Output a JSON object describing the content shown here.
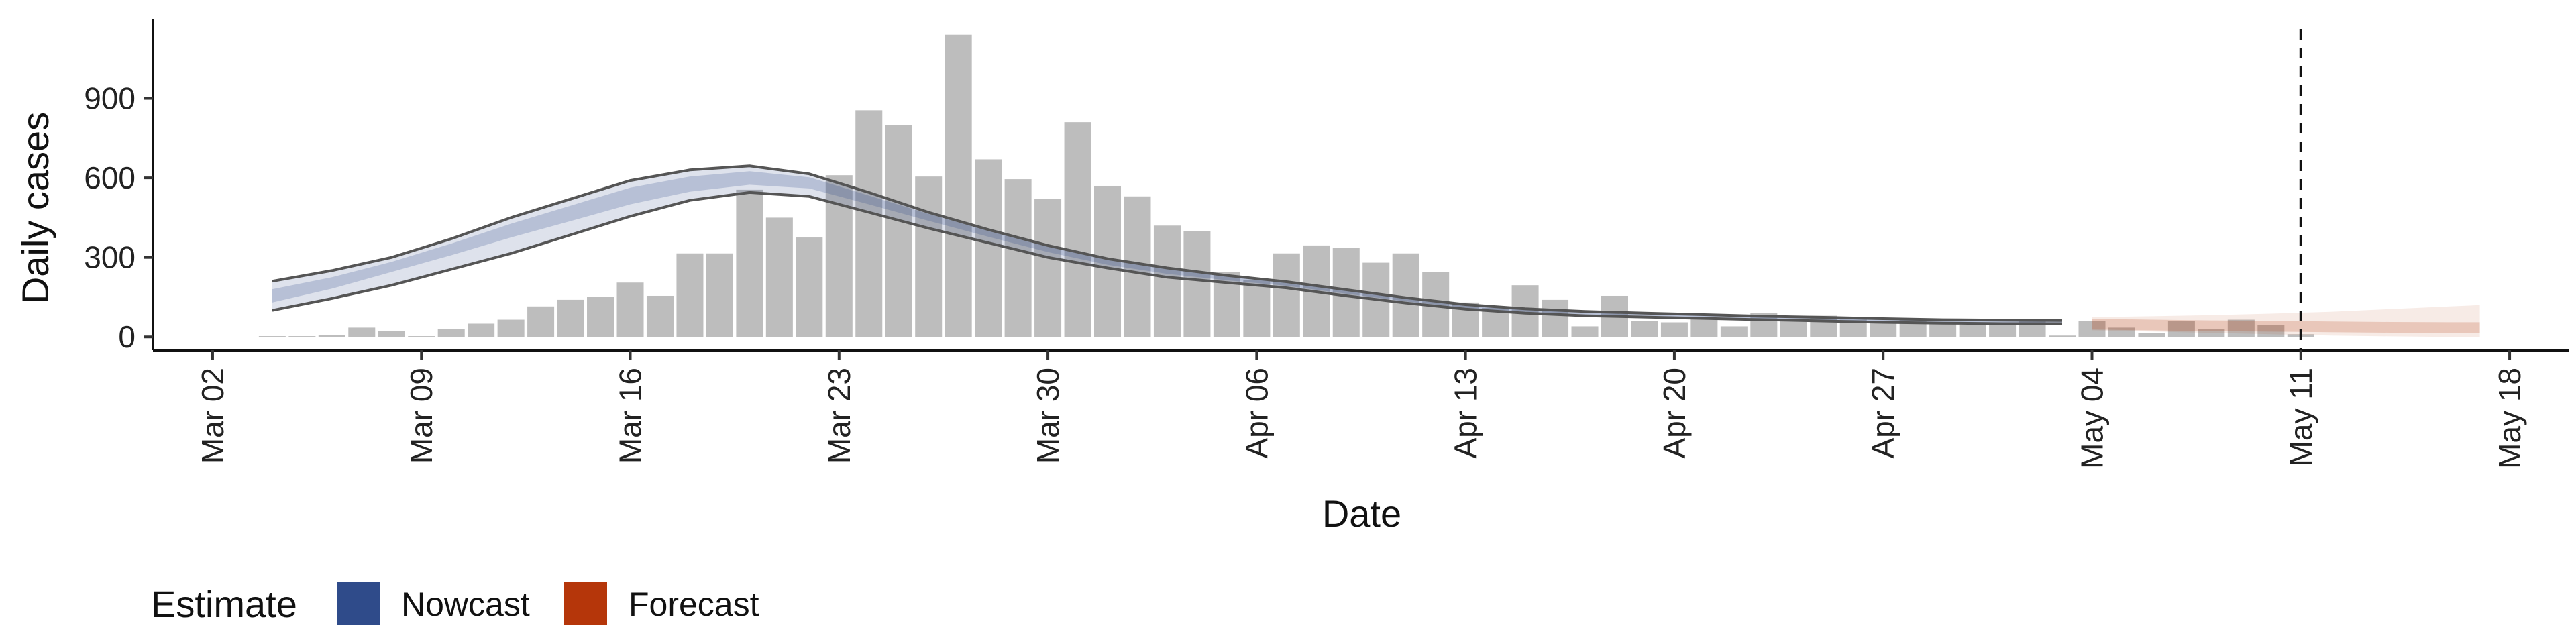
{
  "chart_data": {
    "type": "bar",
    "title": "",
    "xlabel": "Date",
    "ylabel": "Daily cases",
    "ylim": [
      -50,
      1200
    ],
    "xlim": [
      "2020-02-29",
      "2020-05-20"
    ],
    "yticks": [
      0,
      300,
      600,
      900
    ],
    "ytick_labels": [
      "0",
      "300",
      "600",
      "900"
    ],
    "xticks": [
      "2020-03-02",
      "2020-03-09",
      "2020-03-16",
      "2020-03-23",
      "2020-03-30",
      "2020-04-06",
      "2020-04-13",
      "2020-04-20",
      "2020-04-27",
      "2020-05-04",
      "2020-05-11",
      "2020-05-18"
    ],
    "xtick_labels": [
      "Mar 02",
      "Mar 09",
      "Mar 16",
      "Mar 23",
      "Mar 30",
      "Apr 06",
      "Apr 13",
      "Apr 20",
      "Apr 27",
      "May 04",
      "May 11",
      "May 18"
    ],
    "grid": false,
    "colors": {
      "bars": "#bdbdbd",
      "nowcast": "#2f4b8a",
      "forecast": "#b5360a",
      "interval_line": "#555555",
      "vline": "#111111"
    },
    "reported_cases": {
      "start_date": "2020-03-04",
      "values": [
        3,
        3,
        8,
        35,
        22,
        3,
        30,
        50,
        65,
        115,
        140,
        150,
        205,
        155,
        315,
        315,
        555,
        450,
        375,
        610,
        855,
        800,
        605,
        1140,
        670,
        595,
        520,
        810,
        570,
        530,
        420,
        400,
        245,
        215,
        315,
        345,
        335,
        280,
        315,
        245,
        130,
        110,
        195,
        140,
        40,
        155,
        60,
        55,
        70,
        40,
        90,
        60,
        80,
        65,
        55,
        70,
        50,
        45,
        50,
        60,
        5,
        60,
        35,
        15,
        60,
        30,
        65,
        45,
        10
      ]
    },
    "nowcast": {
      "x": [
        "2020-03-04",
        "2020-03-06",
        "2020-03-08",
        "2020-03-10",
        "2020-03-12",
        "2020-03-14",
        "2020-03-16",
        "2020-03-18",
        "2020-03-20",
        "2020-03-22",
        "2020-03-24",
        "2020-03-26",
        "2020-03-28",
        "2020-03-30",
        "2020-04-01",
        "2020-04-03",
        "2020-04-05",
        "2020-04-07",
        "2020-04-09",
        "2020-04-11",
        "2020-04-13",
        "2020-04-15",
        "2020-04-17",
        "2020-04-19",
        "2020-04-21",
        "2020-04-23",
        "2020-04-25",
        "2020-04-27",
        "2020-04-29",
        "2020-05-01",
        "2020-05-03"
      ],
      "median": [
        155,
        205,
        265,
        330,
        400,
        465,
        530,
        575,
        600,
        590,
        525,
        460,
        395,
        335,
        285,
        250,
        225,
        200,
        170,
        140,
        115,
        100,
        90,
        85,
        80,
        75,
        70,
        65,
        60,
        58,
        58
      ],
      "upper_90": [
        210,
        250,
        300,
        370,
        450,
        520,
        590,
        630,
        645,
        615,
        545,
        470,
        405,
        345,
        295,
        260,
        232,
        208,
        178,
        148,
        122,
        106,
        96,
        90,
        84,
        78,
        74,
        69,
        65,
        63,
        62
      ],
      "lower_90": [
        100,
        145,
        195,
        255,
        315,
        385,
        455,
        515,
        545,
        530,
        470,
        410,
        355,
        300,
        260,
        225,
        205,
        185,
        155,
        128,
        105,
        90,
        80,
        75,
        70,
        65,
        60,
        55,
        52,
        50,
        50
      ],
      "upper_50": [
        180,
        225,
        283,
        352,
        427,
        495,
        563,
        605,
        625,
        602,
        533,
        464,
        400,
        340,
        290,
        256,
        229,
        204,
        174,
        144,
        119,
        103,
        93,
        88,
        82,
        77,
        72,
        67,
        63,
        61,
        60
      ],
      "lower_50": [
        130,
        182,
        245,
        308,
        375,
        437,
        500,
        548,
        574,
        560,
        500,
        438,
        378,
        320,
        272,
        238,
        214,
        193,
        163,
        134,
        110,
        95,
        85,
        80,
        75,
        70,
        65,
        60,
        56,
        54,
        54
      ]
    },
    "forecast": {
      "x": [
        "2020-05-04",
        "2020-05-06",
        "2020-05-08",
        "2020-05-10",
        "2020-05-12",
        "2020-05-14",
        "2020-05-16",
        "2020-05-17"
      ],
      "median": [
        48,
        45,
        42,
        40,
        38,
        36,
        35,
        35
      ],
      "upper_90": [
        75,
        78,
        82,
        88,
        95,
        105,
        115,
        120
      ],
      "lower_90": [
        25,
        20,
        15,
        10,
        5,
        2,
        0,
        0
      ]
    },
    "vline_date": "2020-05-11",
    "legend": {
      "title": "Estimate",
      "entries": [
        {
          "label": "Nowcast",
          "color": "#2f4b8a"
        },
        {
          "label": "Forecast",
          "color": "#b5360a"
        }
      ],
      "placement": "bottom-left"
    }
  }
}
